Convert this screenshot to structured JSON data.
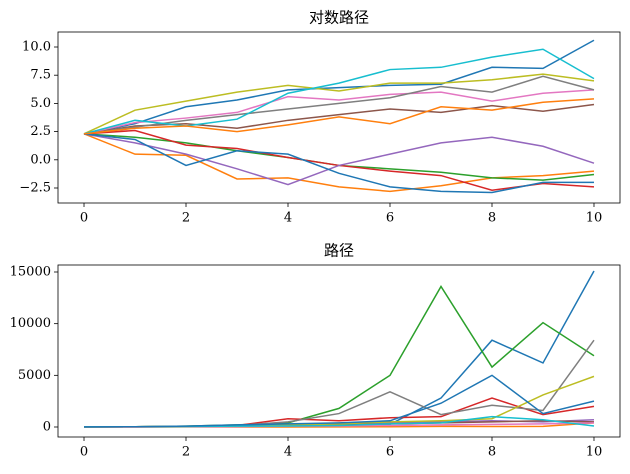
{
  "chart_data": [
    {
      "type": "line",
      "title": "对数路径",
      "x": [
        0,
        1,
        2,
        3,
        4,
        5,
        6,
        7,
        8,
        9,
        10
      ],
      "xlim": [
        -0.51,
        10.51
      ],
      "xticks": [
        0,
        2,
        4,
        6,
        8,
        10
      ],
      "ylim": [
        -3.83,
        11.33
      ],
      "yticks": [
        {
          "value": -2.5,
          "label": "−2.5"
        },
        {
          "value": 0,
          "label": "0.0"
        },
        2.5,
        {
          "value": 5,
          "label": "5.0"
        },
        7.5,
        {
          "value": 10,
          "label": "10.0"
        }
      ],
      "series": [
        {
          "color": "#1f77b4",
          "values": [
            2.3,
            3.2,
            4.7,
            5.3,
            6.2,
            6.4,
            6.6,
            6.7,
            8.2,
            8.1,
            10.6
          ]
        },
        {
          "color": "#ff7f0e",
          "values": [
            2.3,
            0.5,
            0.4,
            -1.7,
            -1.6,
            -2.4,
            -2.8,
            -2.3,
            -1.6,
            -1.4,
            -1.0
          ]
        },
        {
          "color": "#2ca02c",
          "values": [
            2.3,
            2.0,
            1.5,
            0.8,
            0.2,
            -0.5,
            -0.8,
            -1.1,
            -1.6,
            -1.8,
            -1.3
          ]
        },
        {
          "color": "#d62728",
          "values": [
            2.3,
            2.6,
            1.3,
            1.0,
            0.2,
            -0.5,
            -1.0,
            -1.4,
            -2.7,
            -2.1,
            -2.4
          ]
        },
        {
          "color": "#9467bd",
          "values": [
            2.3,
            1.5,
            0.5,
            -0.8,
            -2.2,
            -0.5,
            0.5,
            1.5,
            2.0,
            1.2,
            -0.3
          ]
        },
        {
          "color": "#8c564b",
          "values": [
            2.3,
            3.0,
            3.2,
            2.8,
            3.5,
            4.0,
            4.5,
            4.2,
            4.8,
            4.3,
            4.9
          ]
        },
        {
          "color": "#e377c2",
          "values": [
            2.3,
            3.3,
            3.7,
            4.2,
            5.6,
            5.3,
            5.8,
            6.0,
            5.2,
            5.9,
            6.2
          ]
        },
        {
          "color": "#7f7f7f",
          "values": [
            2.3,
            2.9,
            3.5,
            4.0,
            4.5,
            5.0,
            5.5,
            6.5,
            6.0,
            7.4,
            6.2
          ]
        },
        {
          "color": "#bcbd22",
          "values": [
            2.3,
            4.4,
            5.2,
            6.0,
            6.6,
            6.1,
            6.8,
            6.8,
            7.1,
            7.6,
            7.0
          ]
        },
        {
          "color": "#17becf",
          "values": [
            2.3,
            3.5,
            3.0,
            3.6,
            5.9,
            6.8,
            8.0,
            8.2,
            9.1,
            9.8,
            7.2
          ]
        },
        {
          "color": "#1f77b4",
          "values": [
            2.3,
            1.8,
            -0.5,
            0.8,
            0.5,
            -1.2,
            -2.4,
            -2.8,
            -2.9,
            -2.0,
            -2.0
          ]
        },
        {
          "color": "#ff7f0e",
          "values": [
            2.3,
            2.8,
            3.0,
            2.5,
            3.1,
            3.8,
            3.2,
            4.7,
            4.4,
            5.1,
            5.4
          ]
        }
      ]
    },
    {
      "type": "line",
      "title": "路径",
      "x": [
        0,
        1,
        2,
        3,
        4,
        5,
        6,
        7,
        8,
        9,
        10
      ],
      "xlim": [
        -0.51,
        10.51
      ],
      "xticks": [
        0,
        2,
        4,
        6,
        8,
        10
      ],
      "ylim": [
        -968,
        15677
      ],
      "yticks": [
        0,
        5000,
        10000,
        15000
      ],
      "series": [
        {
          "color": "#1f77b4",
          "values": [
            10,
            20,
            40,
            60,
            80,
            150,
            250,
            2800,
            8400,
            6200,
            15100
          ]
        },
        {
          "color": "#ff7f0e",
          "values": [
            10,
            5,
            8,
            4,
            5,
            8,
            20,
            60,
            50,
            60,
            400
          ]
        },
        {
          "color": "#2ca02c",
          "values": [
            10,
            30,
            80,
            200,
            400,
            1800,
            5000,
            13600,
            5800,
            10100,
            6900
          ]
        },
        {
          "color": "#d62728",
          "values": [
            10,
            20,
            50,
            150,
            800,
            600,
            900,
            1000,
            2800,
            1200,
            2000
          ]
        },
        {
          "color": "#9467bd",
          "values": [
            10,
            15,
            30,
            50,
            100,
            200,
            400,
            500,
            600,
            500,
            700
          ]
        },
        {
          "color": "#8c564b",
          "values": [
            10,
            20,
            40,
            80,
            150,
            200,
            300,
            400,
            500,
            600,
            500
          ]
        },
        {
          "color": "#e377c2",
          "values": [
            10,
            15,
            25,
            40,
            80,
            100,
            150,
            200,
            250,
            300,
            400
          ]
        },
        {
          "color": "#7f7f7f",
          "values": [
            10,
            20,
            60,
            150,
            500,
            1300,
            3400,
            1200,
            2100,
            1600,
            8400
          ]
        },
        {
          "color": "#bcbd22",
          "values": [
            10,
            30,
            60,
            100,
            200,
            300,
            500,
            600,
            800,
            3100,
            4900
          ]
        },
        {
          "color": "#17becf",
          "values": [
            10,
            30,
            50,
            80,
            100,
            150,
            300,
            400,
            1000,
            700,
            100
          ]
        },
        {
          "color": "#1f77b4",
          "values": [
            10,
            20,
            80,
            200,
            300,
            400,
            600,
            2300,
            5000,
            1300,
            2500
          ]
        }
      ]
    }
  ]
}
